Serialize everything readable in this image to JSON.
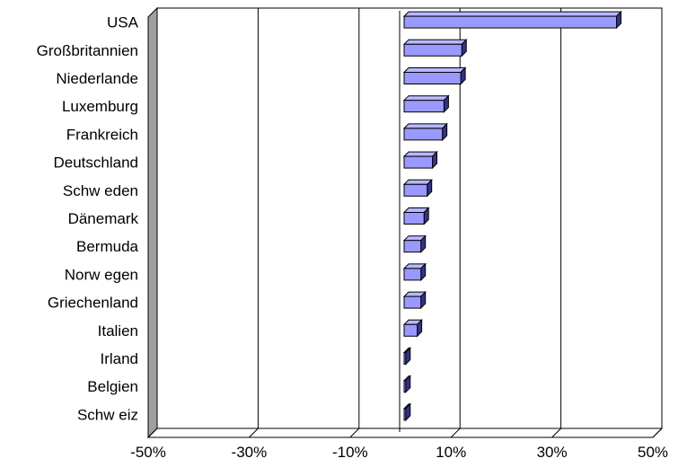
{
  "chart_data": {
    "type": "bar",
    "orientation": "horizontal",
    "style": "3d",
    "categories": [
      "USA",
      "Großbritannien",
      "Niederlande",
      "Luxemburg",
      "Frankreich",
      "Deutschland",
      "Schw eden",
      "Dänemark",
      "Bermuda",
      "Norw egen",
      "Griechenland",
      "Italien",
      "Irland",
      "Belgien",
      "Schw eiz"
    ],
    "values": [
      40.5,
      11,
      10.8,
      7.6,
      7.3,
      5.4,
      4.4,
      3.8,
      3.2,
      3.2,
      3.2,
      2.5,
      0.3,
      0.3,
      0.3
    ],
    "xlim": [
      -50,
      50
    ],
    "xticks": [
      "-50%",
      "-30%",
      "-10%",
      "10%",
      "30%",
      "50%"
    ],
    "grid": true,
    "legend": "none",
    "colors": {
      "bar_front": "#9999ff",
      "bar_top": "#b8b8ff",
      "bar_side": "#33338a",
      "wall": "#a0a0a0",
      "gridline": "#000000"
    }
  }
}
